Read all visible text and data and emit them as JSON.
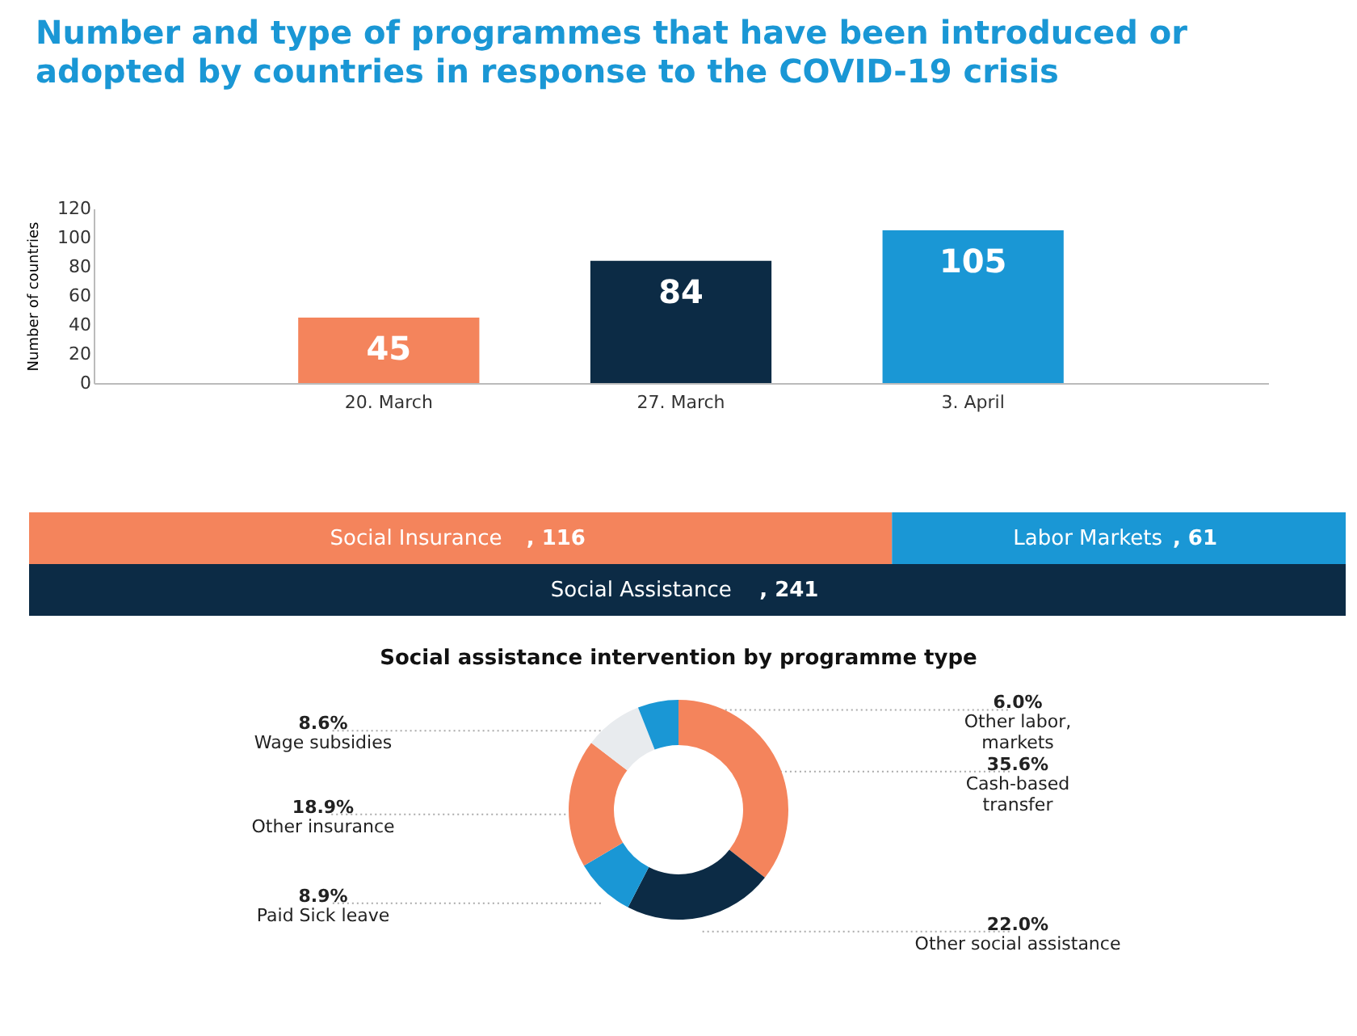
{
  "chart_data": [
    {
      "type": "bar",
      "title": "Number and type of programmes that have been introduced or adopted by countries in response to the COVID-19 crisis",
      "ylabel": "Number of countries",
      "categories": [
        "20. March",
        "27. March",
        "3. April"
      ],
      "values": [
        45,
        84,
        105
      ],
      "colors": [
        "#f4845c",
        "#0c2b45",
        "#1a97d5"
      ],
      "ylim": [
        0,
        120
      ],
      "yticks": [
        0,
        20,
        40,
        60,
        80,
        100,
        120
      ],
      "data_labels": true
    },
    {
      "type": "other",
      "categories": [
        "Social Insurance",
        "Labor Markets",
        "Social Assistance"
      ],
      "values": [
        116,
        61,
        241
      ],
      "colors": [
        "#f4845c",
        "#1a97d5",
        "#0c2b45"
      ],
      "value_labels": [
        ", 116",
        ", 61",
        ", 241"
      ]
    },
    {
      "type": "donut",
      "title": "Social assistance intervention by programme type",
      "categories": [
        "Cash-based\ntransfer",
        "Other social assistance",
        "Paid Sick leave",
        "Other insurance",
        "Wage subsidies",
        "Other labor,\nmarkets"
      ],
      "values": [
        35.6,
        22.0,
        8.9,
        18.9,
        8.6,
        6.0
      ],
      "colors": [
        "#f4845c",
        "#0c2b45",
        "#1a97d5",
        "#f4845c",
        "#e8ebee",
        "#1a97d5"
      ],
      "value_labels": [
        "35.6%",
        "22.0%",
        "8.9%",
        "18.9%",
        "8.6%",
        "6.0%"
      ]
    }
  ]
}
